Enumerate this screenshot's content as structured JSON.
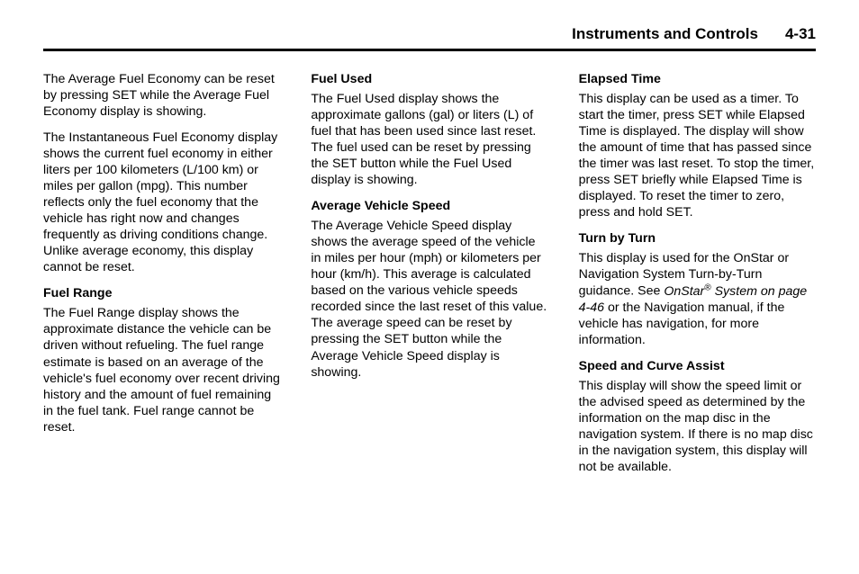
{
  "header": {
    "title": "Instruments and Controls",
    "page": "4-31"
  },
  "col1": {
    "p1": "The Average Fuel Economy can be reset by pressing SET while the Average Fuel Economy display is showing.",
    "p2": "The Instantaneous Fuel Economy display shows the current fuel economy in either liters per 100 kilometers (L/100 km) or miles per gallon (mpg). This number reflects only the fuel economy that the vehicle has right now and changes frequently as driving conditions change. Unlike average economy, this display cannot be reset.",
    "h1": "Fuel Range",
    "p3": "The Fuel Range display shows the approximate distance the vehicle can be driven without refueling. The fuel range estimate is based on an average of the vehicle's fuel economy over recent driving history and the amount of fuel remaining in the fuel tank. Fuel range cannot be reset."
  },
  "col2": {
    "h1": "Fuel Used",
    "p1": "The Fuel Used display shows the approximate gallons (gal) or liters  (L) of fuel that has been used since last reset. The fuel used can be reset by pressing the SET button while the Fuel Used display is showing.",
    "h2": "Average Vehicle Speed",
    "p2": "The Average Vehicle Speed display shows the average speed of the vehicle in miles per hour (mph) or kilometers per hour (km/h). This average is calculated based on the various vehicle speeds recorded since the last reset of this value. The average speed can be reset by pressing the SET button while the Average Vehicle Speed display is showing."
  },
  "col3": {
    "h1": "Elapsed Time",
    "p1": "This display can be used as a timer. To start the timer, press SET while Elapsed Time is displayed. The display will show the amount of time that has passed since the timer was last reset. To stop the timer, press SET briefly while Elapsed Time is displayed. To reset the timer to zero, press and hold SET.",
    "h2": "Turn by Turn",
    "p2a": "This display is used for the OnStar or Navigation System Turn-by-Turn guidance. See ",
    "p2b": "OnStar",
    "p2c": " System on page 4-46",
    "p2d": " or the Navigation manual, if the vehicle has navigation, for more information.",
    "h3": "Speed and Curve Assist",
    "p3": "This display will show the speed limit or the advised speed as determined by the information on the map disc in the navigation system. If there is no map disc in the navigation system, this display will not be available."
  }
}
